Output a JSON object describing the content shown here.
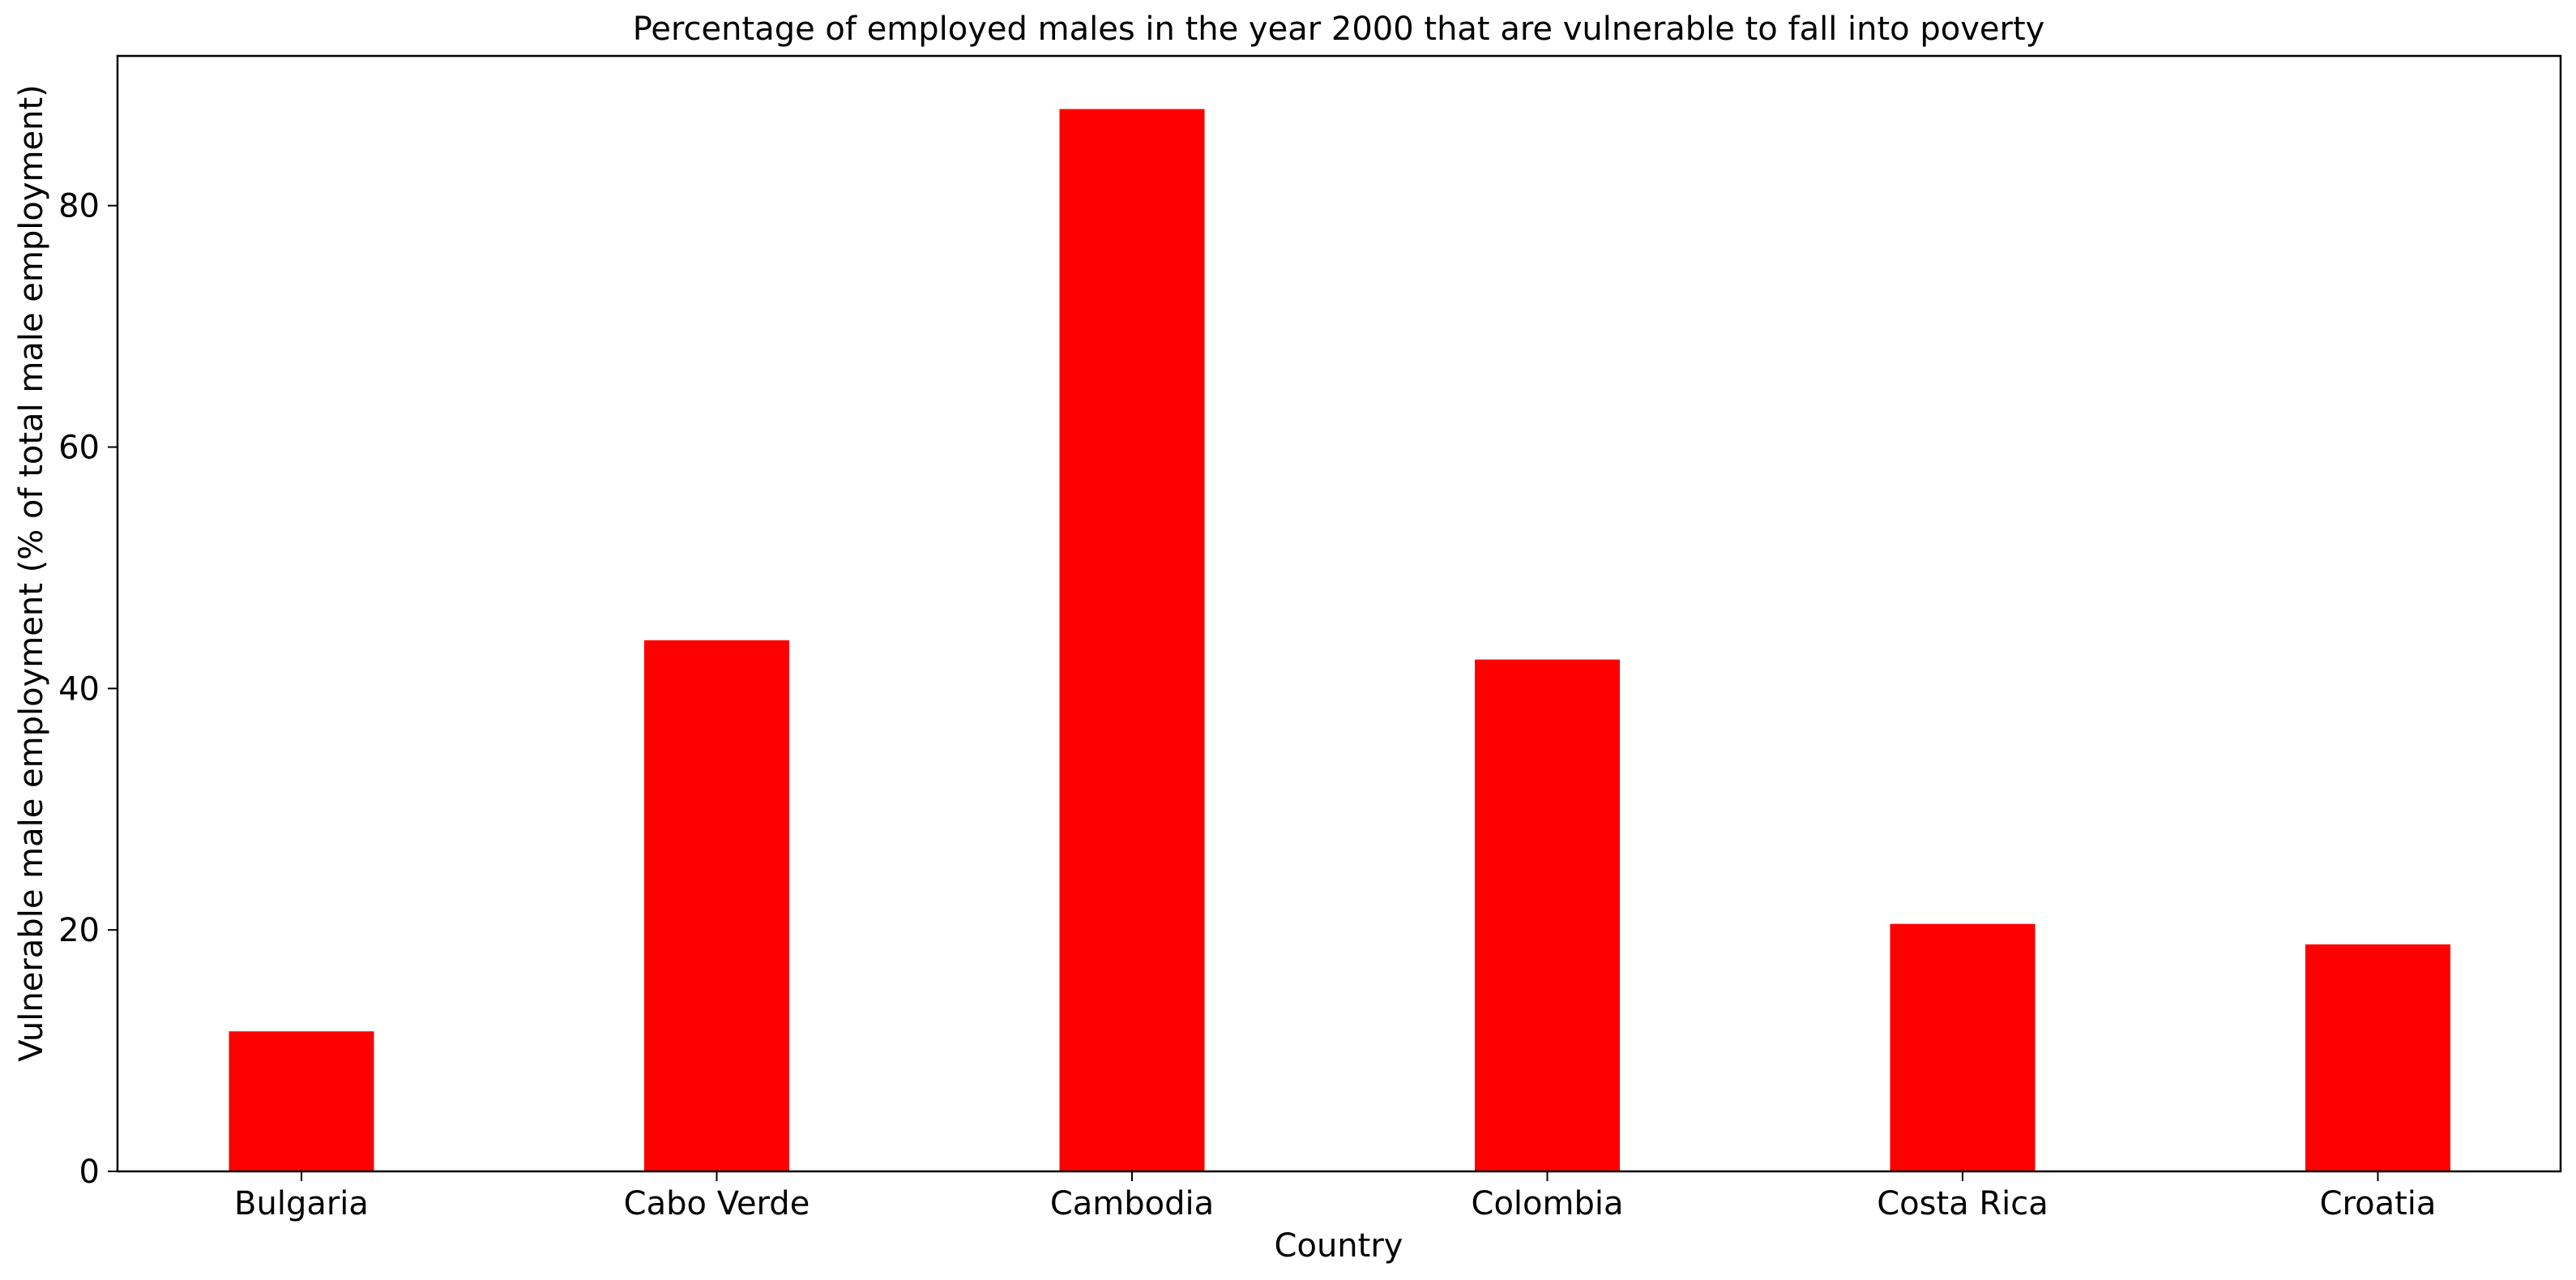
{
  "chart_data": {
    "type": "bar",
    "title": "Percentage of employed males in the year 2000 that are vulnerable to fall into poverty",
    "xlabel": "Country",
    "ylabel": "Vulnerable male employment (% of total male employment)",
    "categories": [
      "Bulgaria",
      "Cabo Verde",
      "Cambodia",
      "Colombia",
      "Costa Rica",
      "Croatia"
    ],
    "values": [
      11.6,
      44.0,
      88.0,
      42.4,
      20.5,
      18.8
    ],
    "ylim": [
      0,
      92.4
    ],
    "yticks": [
      0,
      20,
      40,
      60,
      80
    ],
    "grid": false,
    "legend": "none",
    "bar_color": "#ff0000"
  }
}
